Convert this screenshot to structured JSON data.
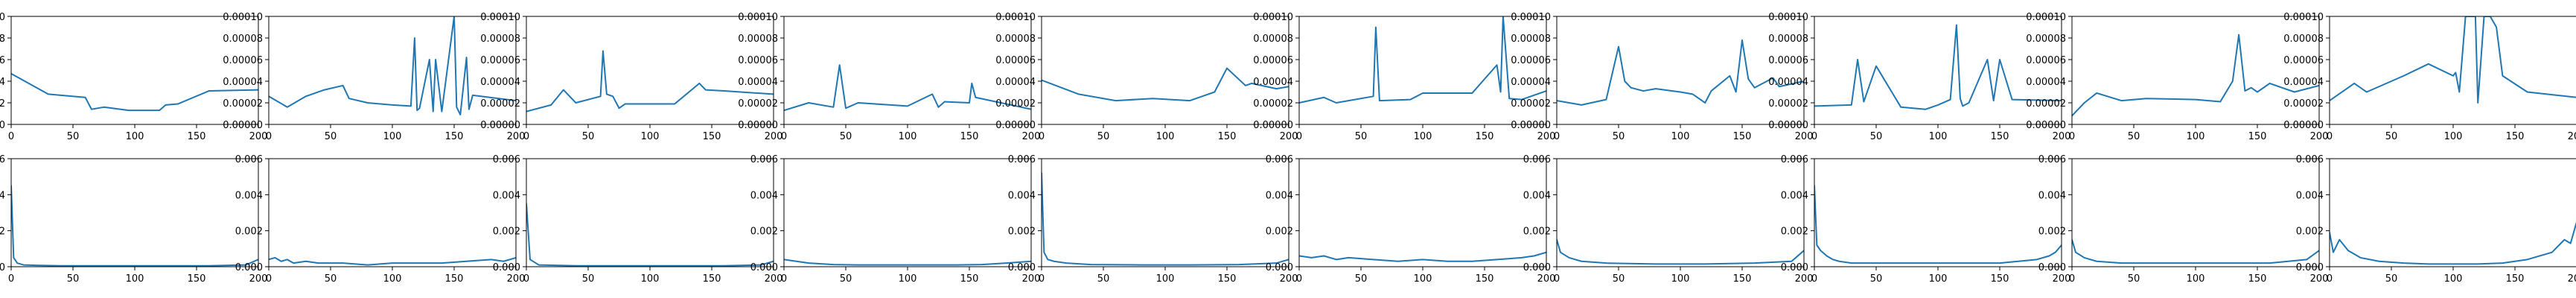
{
  "chart_data": {
    "type": "line",
    "layout": "2 rows x 10 columns of small line plots",
    "grid": false,
    "line_color": "#1f77b4",
    "rows": [
      {
        "row": "top",
        "xlim": [
          0,
          200
        ],
        "ylim": [
          0,
          0.0001
        ],
        "xticks": [
          0,
          50,
          100,
          150,
          200
        ],
        "yticks": [
          0.0,
          2e-05,
          4e-05,
          6e-05,
          8e-05,
          0.0001
        ],
        "xtick_labels": [
          "0",
          "50",
          "100",
          "150",
          "200"
        ],
        "ytick_labels": [
          "0.00000",
          "0.00002",
          "0.00004",
          "0.00006",
          "0.00008",
          "0.00010"
        ],
        "panels": [
          {
            "x": [
              0,
              30,
              60,
              65,
              75,
              95,
              120,
              125,
              135,
              160,
              200
            ],
            "y": [
              4.7e-05,
              2.8e-05,
              2.5e-05,
              1.4e-05,
              1.6e-05,
              1.3e-05,
              1.3e-05,
              1.8e-05,
              1.9e-05,
              3.1e-05,
              3.2e-05
            ]
          },
          {
            "x": [
              0,
              15,
              30,
              45,
              60,
              65,
              80,
              100,
              115,
              118,
              120,
              122,
              130,
              133,
              135,
              140,
              150,
              152,
              155,
              160,
              162,
              165,
              200
            ],
            "y": [
              2.6e-05,
              1.6e-05,
              2.6e-05,
              3.2e-05,
              3.6e-05,
              2.4e-05,
              2e-05,
              1.8e-05,
              1.7e-05,
              8e-05,
              1.3e-05,
              1.5e-05,
              6e-05,
              1.2e-05,
              6e-05,
              1.2e-05,
              0.0001,
              1.6e-05,
              9e-06,
              6.2e-05,
              1.4e-05,
              2.7e-05,
              2.2e-05
            ]
          },
          {
            "x": [
              0,
              20,
              30,
              40,
              60,
              62,
              65,
              70,
              75,
              80,
              120,
              140,
              145,
              160,
              200
            ],
            "y": [
              1.2e-05,
              1.8e-05,
              3.2e-05,
              2e-05,
              2.6e-05,
              6.8e-05,
              2.8e-05,
              2.6e-05,
              1.5e-05,
              1.9e-05,
              1.9e-05,
              3.8e-05,
              3.2e-05,
              3.1e-05,
              2.8e-05
            ]
          },
          {
            "x": [
              0,
              20,
              40,
              45,
              50,
              60,
              100,
              120,
              125,
              130,
              150,
              152,
              155,
              200
            ],
            "y": [
              1.3e-05,
              2e-05,
              1.6e-05,
              5.5e-05,
              1.5e-05,
              2e-05,
              1.7e-05,
              2.8e-05,
              1.6e-05,
              2.1e-05,
              2e-05,
              3.8e-05,
              2.5e-05,
              1.4e-05
            ]
          },
          {
            "x": [
              0,
              30,
              60,
              90,
              120,
              140,
              150,
              165,
              170,
              190,
              200
            ],
            "y": [
              4.1e-05,
              2.8e-05,
              2.2e-05,
              2.4e-05,
              2.2e-05,
              3e-05,
              5.2e-05,
              3.6e-05,
              3.8e-05,
              3.3e-05,
              3.5e-05
            ]
          },
          {
            "x": [
              0,
              20,
              30,
              60,
              62,
              65,
              90,
              100,
              140,
              160,
              163,
              165,
              170,
              180,
              200
            ],
            "y": [
              2e-05,
              2.5e-05,
              2e-05,
              2.6e-05,
              9e-05,
              2.2e-05,
              2.3e-05,
              2.9e-05,
              2.9e-05,
              5.5e-05,
              3e-05,
              0.0001,
              2.4e-05,
              2.3e-05,
              3.1e-05
            ]
          },
          {
            "x": [
              0,
              20,
              40,
              50,
              55,
              60,
              70,
              80,
              100,
              110,
              120,
              125,
              140,
              145,
              150,
              155,
              160,
              170,
              175,
              180,
              200
            ],
            "y": [
              2.2e-05,
              1.8e-05,
              2.3e-05,
              7.2e-05,
              4e-05,
              3.4e-05,
              3.1e-05,
              3.3e-05,
              3e-05,
              2.8e-05,
              2e-05,
              3.1e-05,
              4.5e-05,
              3e-05,
              7.8e-05,
              4.2e-05,
              3.4e-05,
              4e-05,
              4.3e-05,
              3.5e-05,
              4e-05
            ]
          },
          {
            "x": [
              0,
              30,
              35,
              40,
              50,
              70,
              90,
              100,
              110,
              115,
              118,
              120,
              125,
              140,
              145,
              150,
              160,
              200
            ],
            "y": [
              1.7e-05,
              1.8e-05,
              6e-05,
              2.1e-05,
              5.4e-05,
              1.6e-05,
              1.4e-05,
              1.8e-05,
              2.3e-05,
              9.2e-05,
              2.4e-05,
              1.7e-05,
              2e-05,
              6e-05,
              2.2e-05,
              6e-05,
              2.3e-05,
              2.2e-05
            ]
          },
          {
            "x": [
              0,
              10,
              20,
              40,
              60,
              100,
              120,
              130,
              135,
              140,
              145,
              150,
              160,
              180,
              200
            ],
            "y": [
              8e-06,
              2e-05,
              2.9e-05,
              2.2e-05,
              2.4e-05,
              2.3e-05,
              2.1e-05,
              4e-05,
              8.3e-05,
              3.1e-05,
              3.4e-05,
              3e-05,
              3.8e-05,
              3e-05,
              3.6e-05
            ]
          },
          {
            "x": [
              0,
              20,
              30,
              60,
              80,
              100,
              102,
              105,
              110,
              118,
              120,
              125,
              130,
              135,
              140,
              160,
              200
            ],
            "y": [
              2.2e-05,
              3.8e-05,
              3e-05,
              4.5e-05,
              5.6e-05,
              4.5e-05,
              4.8e-05,
              3e-05,
              0.0001,
              0.0001,
              2e-05,
              0.0001,
              0.0001,
              9e-05,
              4.5e-05,
              3e-05,
              2.5e-05
            ]
          }
        ]
      },
      {
        "row": "bottom",
        "xlim": [
          0,
          200
        ],
        "ylim": [
          0,
          0.006
        ],
        "xticks": [
          0,
          50,
          100,
          150,
          200
        ],
        "yticks": [
          0.0,
          0.002,
          0.004,
          0.006
        ],
        "xtick_labels": [
          "0",
          "50",
          "100",
          "150",
          "200"
        ],
        "ytick_labels": [
          "0.000",
          "0.002",
          "0.004",
          "0.006"
        ],
        "panels": [
          {
            "x": [
              0,
              2,
              5,
              10,
              20,
              40,
              80,
              120,
              160,
              190,
              200
            ],
            "y": [
              0.0045,
              0.0005,
              0.0002,
              0.0001,
              8e-05,
              5e-05,
              5e-05,
              5e-05,
              5e-05,
              0.0001,
              0.0004
            ]
          },
          {
            "x": [
              0,
              5,
              10,
              15,
              20,
              30,
              40,
              60,
              80,
              100,
              120,
              140,
              160,
              180,
              190,
              200
            ],
            "y": [
              0.0004,
              0.0005,
              0.0003,
              0.0004,
              0.0002,
              0.0003,
              0.0002,
              0.0002,
              0.0001,
              0.0002,
              0.0002,
              0.0002,
              0.0003,
              0.0004,
              0.0003,
              0.0005
            ]
          },
          {
            "x": [
              0,
              3,
              10,
              40,
              80,
              120,
              160,
              190,
              200
            ],
            "y": [
              0.0035,
              0.0004,
              0.0001,
              5e-05,
              5e-05,
              5e-05,
              5e-05,
              0.0001,
              0.0003
            ]
          },
          {
            "x": [
              0,
              10,
              20,
              40,
              60,
              80,
              100,
              120,
              140,
              160,
              180,
              200
            ],
            "y": [
              0.0004,
              0.0003,
              0.0002,
              0.00012,
              0.0001,
              0.0001,
              0.0001,
              0.0001,
              0.0001,
              0.00012,
              0.0002,
              0.0003
            ]
          },
          {
            "x": [
              0,
              2,
              5,
              10,
              20,
              40,
              80,
              120,
              160,
              190,
              200
            ],
            "y": [
              0.0052,
              0.0008,
              0.0004,
              0.0003,
              0.0002,
              0.00012,
              0.0001,
              0.0001,
              0.00012,
              0.0002,
              0.0004
            ]
          },
          {
            "x": [
              0,
              10,
              20,
              30,
              40,
              60,
              80,
              100,
              120,
              140,
              160,
              180,
              190,
              200
            ],
            "y": [
              0.0006,
              0.0005,
              0.0006,
              0.0004,
              0.0005,
              0.0004,
              0.0003,
              0.0004,
              0.0003,
              0.0003,
              0.0004,
              0.0005,
              0.0006,
              0.0008
            ]
          },
          {
            "x": [
              0,
              3,
              10,
              20,
              40,
              80,
              120,
              160,
              190,
              200
            ],
            "y": [
              0.0015,
              0.0008,
              0.0005,
              0.0003,
              0.0002,
              0.00015,
              0.00015,
              0.0002,
              0.0003,
              0.0009
            ]
          },
          {
            "x": [
              0,
              2,
              5,
              10,
              15,
              20,
              30,
              50,
              100,
              150,
              180,
              190,
              195,
              200
            ],
            "y": [
              0.0045,
              0.0012,
              0.0009,
              0.0006,
              0.0004,
              0.0003,
              0.0002,
              0.0002,
              0.0002,
              0.0002,
              0.0004,
              0.0006,
              0.0008,
              0.0012
            ]
          },
          {
            "x": [
              0,
              3,
              10,
              20,
              40,
              80,
              120,
              160,
              190,
              200
            ],
            "y": [
              0.0015,
              0.0008,
              0.0005,
              0.0003,
              0.0002,
              0.0002,
              0.0002,
              0.0002,
              0.0004,
              0.0009
            ]
          },
          {
            "x": [
              0,
              3,
              8,
              15,
              25,
              40,
              60,
              80,
              100,
              120,
              140,
              160,
              180,
              190,
              195,
              200
            ],
            "y": [
              0.0019,
              0.0008,
              0.0015,
              0.0009,
              0.0005,
              0.0003,
              0.0002,
              0.00015,
              0.00015,
              0.00015,
              0.0002,
              0.0004,
              0.0008,
              0.0015,
              0.0013,
              0.0025
            ]
          }
        ]
      }
    ]
  }
}
